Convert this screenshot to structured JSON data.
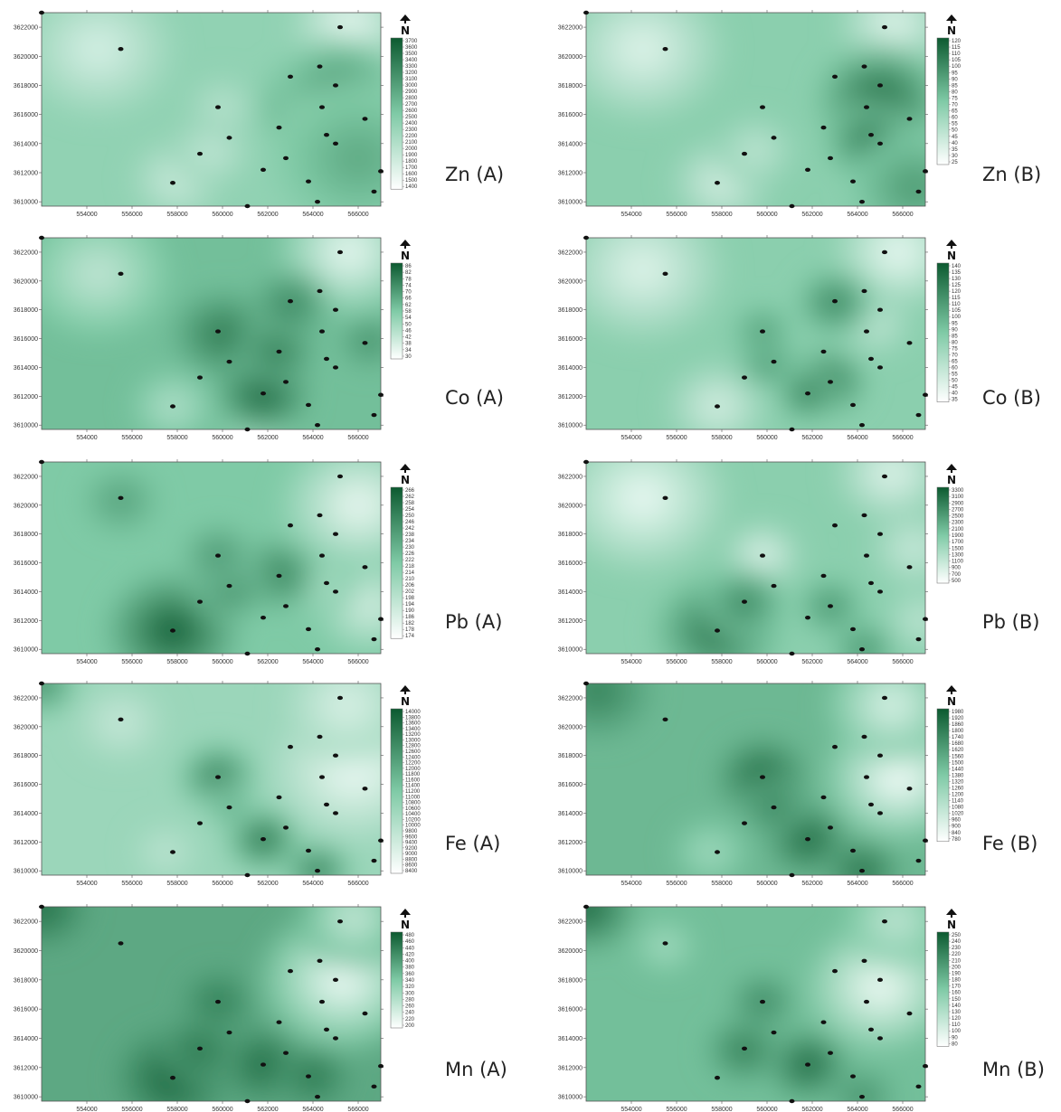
{
  "north_letter": "N",
  "colors": {
    "low": "#f2fbf8",
    "mid": "#7fcaa6",
    "high": "#0c5a30",
    "sample_point": "#111111"
  },
  "axes": {
    "x_ticks": [
      "554000",
      "556000",
      "558000",
      "560000",
      "562000",
      "564000",
      "566000"
    ],
    "y_ticks": [
      "3622000",
      "3620000",
      "3618000",
      "3616000",
      "3614000",
      "3612000",
      "3610000"
    ]
  },
  "sample_points": [
    [
      552000,
      3623000
    ],
    [
      555500,
      3620500
    ],
    [
      565200,
      3622000
    ],
    [
      564300,
      3619300
    ],
    [
      563000,
      3618600
    ],
    [
      565000,
      3618000
    ],
    [
      559800,
      3616500
    ],
    [
      564400,
      3616500
    ],
    [
      566300,
      3615700
    ],
    [
      562500,
      3615100
    ],
    [
      560300,
      3614400
    ],
    [
      564600,
      3614600
    ],
    [
      565000,
      3614000
    ],
    [
      559000,
      3613300
    ],
    [
      562800,
      3613000
    ],
    [
      557800,
      3611300
    ],
    [
      561800,
      3612200
    ],
    [
      563800,
      3611400
    ],
    [
      567000,
      3612100
    ],
    [
      566700,
      3610700
    ],
    [
      564200,
      3610000
    ],
    [
      561100,
      3609700
    ]
  ],
  "maps": [
    {
      "label": "Zn (A)",
      "legend": [
        "3700",
        "3600",
        "3500",
        "3400",
        "3300",
        "3200",
        "3100",
        "3000",
        "2900",
        "2800",
        "2700",
        "2600",
        "2500",
        "2400",
        "2300",
        "2200",
        "2100",
        "2000",
        "1900",
        "1800",
        "1700",
        "1600",
        "1500",
        "1400"
      ],
      "hotspots": [
        [
          564400,
          3616500,
          2500,
          0.9
        ],
        [
          565200,
          3617500,
          2500,
          0.6
        ],
        [
          566000,
          3613000,
          3500,
          0.4
        ]
      ],
      "lowspots": [
        [
          554500,
          3620500,
          3000,
          0.7
        ],
        [
          565600,
          3622000,
          2200,
          0.9
        ],
        [
          558000,
          3611500,
          1800,
          0.6
        ],
        [
          559500,
          3613500,
          1600,
          0.5
        ],
        [
          560000,
          3616500,
          1400,
          0.4
        ]
      ],
      "base": 0.42
    },
    {
      "label": "Zn (B)",
      "legend": [
        "120",
        "115",
        "110",
        "105",
        "100",
        "95",
        "90",
        "85",
        "80",
        "75",
        "70",
        "65",
        "60",
        "55",
        "50",
        "45",
        "40",
        "35",
        "30",
        "25"
      ],
      "hotspots": [
        [
          565000,
          3617000,
          2500,
          0.9
        ],
        [
          564600,
          3614200,
          1800,
          0.8
        ],
        [
          566500,
          3611000,
          2500,
          0.5
        ]
      ],
      "lowspots": [
        [
          554500,
          3620500,
          3200,
          0.8
        ],
        [
          565600,
          3622200,
          2200,
          0.8
        ],
        [
          558000,
          3611300,
          2000,
          0.7
        ],
        [
          559500,
          3613500,
          1600,
          0.5
        ]
      ],
      "base": 0.45
    },
    {
      "label": "Co (A)",
      "legend": [
        "86",
        "82",
        "78",
        "74",
        "70",
        "66",
        "62",
        "58",
        "54",
        "50",
        "46",
        "42",
        "38",
        "34",
        "30"
      ],
      "hotspots": [
        [
          561800,
          3612200,
          1800,
          0.9
        ],
        [
          560000,
          3616300,
          2000,
          0.7
        ],
        [
          562400,
          3615200,
          1500,
          0.7
        ],
        [
          563000,
          3618400,
          1500,
          0.6
        ],
        [
          566500,
          3615800,
          1200,
          0.5
        ]
      ],
      "lowspots": [
        [
          554500,
          3620500,
          2800,
          0.6
        ],
        [
          565600,
          3622000,
          2800,
          0.9
        ],
        [
          557800,
          3611300,
          1600,
          0.5
        ],
        [
          561500,
          3609800,
          1500,
          0.5
        ]
      ],
      "base": 0.55
    },
    {
      "label": "Co (B)",
      "legend": [
        "140",
        "135",
        "130",
        "125",
        "120",
        "115",
        "110",
        "105",
        "100",
        "95",
        "90",
        "85",
        "80",
        "75",
        "70",
        "65",
        "60",
        "55",
        "50",
        "45",
        "40",
        "35"
      ],
      "hotspots": [
        [
          562700,
          3613000,
          1500,
          0.9
        ],
        [
          561800,
          3612200,
          1200,
          0.8
        ],
        [
          563000,
          3618500,
          1500,
          0.7
        ],
        [
          560000,
          3614400,
          1200,
          0.6
        ],
        [
          559800,
          3616500,
          1200,
          0.5
        ]
      ],
      "lowspots": [
        [
          554500,
          3620800,
          3200,
          0.8
        ],
        [
          565800,
          3622000,
          2500,
          0.9
        ],
        [
          557800,
          3611300,
          2000,
          0.7
        ],
        [
          564800,
          3617000,
          1500,
          0.5
        ]
      ],
      "base": 0.45
    },
    {
      "label": "Pb (A)",
      "legend": [
        "266",
        "262",
        "258",
        "254",
        "250",
        "246",
        "242",
        "238",
        "234",
        "230",
        "226",
        "222",
        "218",
        "214",
        "210",
        "206",
        "202",
        "198",
        "194",
        "190",
        "186",
        "182",
        "178",
        "174"
      ],
      "hotspots": [
        [
          557800,
          3611300,
          2600,
          0.95
        ],
        [
          562400,
          3615200,
          1600,
          0.7
        ],
        [
          560300,
          3614400,
          1600,
          0.6
        ],
        [
          559800,
          3616500,
          1400,
          0.5
        ],
        [
          555500,
          3620300,
          1500,
          0.4
        ]
      ],
      "lowspots": [
        [
          566000,
          3620000,
          3000,
          0.9
        ],
        [
          566500,
          3613000,
          2200,
          0.7
        ],
        [
          564200,
          3614600,
          1500,
          0.4
        ]
      ],
      "base": 0.5
    },
    {
      "label": "Pb (B)",
      "legend": [
        "3300",
        "3100",
        "2900",
        "2700",
        "2500",
        "2300",
        "2100",
        "1900",
        "1700",
        "1500",
        "1300",
        "1100",
        "900",
        "700",
        "500"
      ],
      "hotspots": [
        [
          557800,
          3611300,
          2500,
          0.8
        ],
        [
          559000,
          3613200,
          1600,
          0.7
        ],
        [
          562800,
          3613000,
          1300,
          0.6
        ],
        [
          564300,
          3610000,
          1300,
          0.6
        ]
      ],
      "lowspots": [
        [
          554500,
          3620500,
          3300,
          0.9
        ],
        [
          559800,
          3616500,
          1500,
          0.8
        ],
        [
          565500,
          3622200,
          2200,
          0.8
        ],
        [
          566500,
          3617000,
          1800,
          0.6
        ],
        [
          566800,
          3612000,
          1500,
          0.5
        ]
      ],
      "base": 0.45
    },
    {
      "label": "Fe (A)",
      "legend": [
        "14000",
        "13800",
        "13600",
        "13400",
        "13200",
        "13000",
        "12800",
        "12600",
        "12400",
        "12200",
        "12000",
        "11800",
        "11600",
        "11400",
        "11200",
        "11000",
        "10800",
        "10600",
        "10400",
        "10200",
        "10000",
        "9800",
        "9600",
        "9400",
        "9200",
        "9000",
        "8800",
        "8600",
        "8400"
      ],
      "hotspots": [
        [
          561800,
          3612200,
          1500,
          0.9
        ],
        [
          559800,
          3616500,
          1600,
          0.8
        ],
        [
          564200,
          3610000,
          1400,
          0.8
        ],
        [
          560300,
          3614500,
          1000,
          0.5
        ],
        [
          552000,
          3623000,
          1500,
          0.7
        ]
      ],
      "lowspots": [
        [
          555500,
          3620300,
          1800,
          0.5
        ],
        [
          565800,
          3617000,
          3200,
          0.9
        ],
        [
          565500,
          3621500,
          2500,
          0.7
        ],
        [
          557500,
          3611300,
          1300,
          0.4
        ]
      ],
      "base": 0.38
    },
    {
      "label": "Fe (B)",
      "legend": [
        "1980",
        "1920",
        "1860",
        "1800",
        "1740",
        "1680",
        "1620",
        "1560",
        "1500",
        "1440",
        "1380",
        "1320",
        "1260",
        "1200",
        "1140",
        "1080",
        "1020",
        "960",
        "900",
        "840",
        "780"
      ],
      "hotspots": [
        [
          559800,
          3616500,
          1800,
          0.9
        ],
        [
          561800,
          3612200,
          1600,
          0.9
        ],
        [
          560300,
          3614500,
          1300,
          0.6
        ],
        [
          564200,
          3610000,
          1500,
          0.8
        ],
        [
          552500,
          3622500,
          2200,
          0.6
        ]
      ],
      "lowspots": [
        [
          565800,
          3616500,
          2800,
          1.0
        ],
        [
          565500,
          3621500,
          2500,
          0.8
        ],
        [
          557500,
          3611300,
          1500,
          0.4
        ]
      ],
      "base": 0.58
    },
    {
      "label": "Mn (A)",
      "legend": [
        "480",
        "460",
        "440",
        "420",
        "400",
        "380",
        "360",
        "340",
        "320",
        "300",
        "280",
        "260",
        "240",
        "220",
        "200"
      ],
      "hotspots": [
        [
          557800,
          3611300,
          2200,
          0.9
        ],
        [
          561800,
          3612200,
          1700,
          0.8
        ],
        [
          559000,
          3613200,
          1500,
          0.7
        ],
        [
          564000,
          3611400,
          1400,
          0.7
        ],
        [
          559800,
          3616500,
          1400,
          0.6
        ],
        [
          552000,
          3623000,
          1800,
          0.8
        ]
      ],
      "lowspots": [
        [
          565300,
          3618000,
          3200,
          0.95
        ],
        [
          565800,
          3622200,
          2200,
          0.7
        ]
      ],
      "base": 0.65
    },
    {
      "label": "Mn (B)",
      "legend": [
        "250",
        "240",
        "230",
        "220",
        "210",
        "200",
        "190",
        "180",
        "170",
        "160",
        "150",
        "140",
        "130",
        "120",
        "110",
        "100",
        "90",
        "80"
      ],
      "hotspots": [
        [
          561800,
          3612200,
          1600,
          0.9
        ],
        [
          559000,
          3613200,
          1500,
          0.7
        ],
        [
          559800,
          3616500,
          1300,
          0.6
        ],
        [
          552000,
          3623000,
          2000,
          0.9
        ],
        [
          564200,
          3610000,
          1300,
          0.5
        ]
      ],
      "lowspots": [
        [
          565000,
          3617500,
          2800,
          0.95
        ],
        [
          565700,
          3622000,
          2000,
          0.6
        ],
        [
          555500,
          3620300,
          1200,
          0.4
        ]
      ],
      "base": 0.55
    }
  ]
}
